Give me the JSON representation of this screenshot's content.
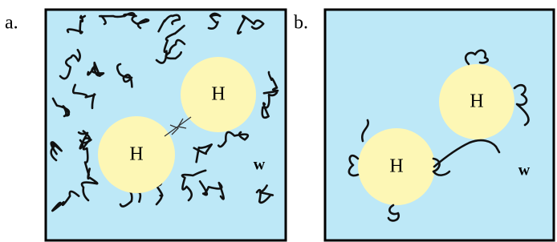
{
  "panels": [
    {
      "label": "a.",
      "particles": [
        "H",
        "H"
      ],
      "solvent": "w"
    },
    {
      "label": "b.",
      "particles": [
        "H",
        "H"
      ],
      "solvent": "w"
    }
  ]
}
